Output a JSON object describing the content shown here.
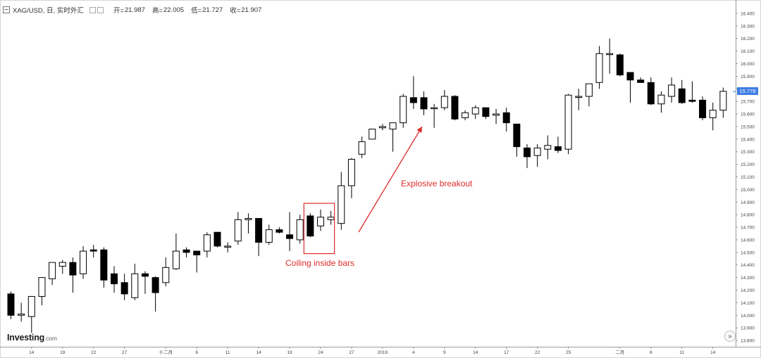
{
  "header": {
    "symbol": "XAG/USD, 日, 实时外汇",
    "open_label": "开=",
    "open_value": "21.987",
    "high_label": "高=",
    "high_value": "22.005",
    "low_label": "低=",
    "low_value": "21.727",
    "close_label": "收=",
    "close_value": "21.907"
  },
  "logo": {
    "brand": "Investing",
    "suffix": ".com"
  },
  "annotations": {
    "breakout": "Explosive breakout",
    "coiling": "Coiling inside bars",
    "color": "#e02b2b"
  },
  "current_price": {
    "label": "15.778",
    "color": "#3d7ee3"
  },
  "scroll_button": {
    "glyph": "»"
  },
  "chart_data": {
    "type": "candlestick",
    "ylim": [
      13.75,
      16.45
    ],
    "yticks": [
      "13.800",
      "13.900",
      "14.000",
      "14.100",
      "14.200",
      "14.300",
      "14.400",
      "14.500",
      "14.600",
      "14.700",
      "14.800",
      "14.900",
      "15.000",
      "15.100",
      "15.200",
      "15.300",
      "15.400",
      "15.500",
      "15.600",
      "15.700",
      "15.800",
      "15.900",
      "16.000",
      "16.100",
      "16.200",
      "16.300",
      "16.400"
    ],
    "xticks": [
      {
        "label": "14",
        "index": 2
      },
      {
        "label": "19",
        "index": 5
      },
      {
        "label": "22",
        "index": 8
      },
      {
        "label": "27",
        "index": 11
      },
      {
        "label": "十二月",
        "index": 15
      },
      {
        "label": "6",
        "index": 18
      },
      {
        "label": "11",
        "index": 21
      },
      {
        "label": "14",
        "index": 24
      },
      {
        "label": "19",
        "index": 27
      },
      {
        "label": "24",
        "index": 30
      },
      {
        "label": "27",
        "index": 33
      },
      {
        "label": "2019",
        "index": 36
      },
      {
        "label": "4",
        "index": 39
      },
      {
        "label": "9",
        "index": 42
      },
      {
        "label": "14",
        "index": 45
      },
      {
        "label": "17",
        "index": 48
      },
      {
        "label": "22",
        "index": 51
      },
      {
        "label": "25",
        "index": 54
      },
      {
        "label": "二月",
        "index": 59
      },
      {
        "label": "6",
        "index": 62
      },
      {
        "label": "11",
        "index": 65
      },
      {
        "label": "14",
        "index": 68
      }
    ],
    "candles": [
      {
        "o": 14.17,
        "h": 14.19,
        "l": 13.97,
        "c": 14.0
      },
      {
        "o": 14.0,
        "h": 14.1,
        "l": 13.95,
        "c": 14.01
      },
      {
        "o": 13.99,
        "h": 14.15,
        "l": 13.86,
        "c": 14.15
      },
      {
        "o": 14.15,
        "h": 14.3,
        "l": 14.08,
        "c": 14.3
      },
      {
        "o": 14.29,
        "h": 14.42,
        "l": 14.24,
        "c": 14.42
      },
      {
        "o": 14.39,
        "h": 14.44,
        "l": 14.33,
        "c": 14.42
      },
      {
        "o": 14.42,
        "h": 14.46,
        "l": 14.18,
        "c": 14.32
      },
      {
        "o": 14.33,
        "h": 14.55,
        "l": 14.29,
        "c": 14.51
      },
      {
        "o": 14.52,
        "h": 14.56,
        "l": 14.46,
        "c": 14.51
      },
      {
        "o": 14.52,
        "h": 14.54,
        "l": 14.22,
        "c": 14.28
      },
      {
        "o": 14.33,
        "h": 14.39,
        "l": 14.18,
        "c": 14.25
      },
      {
        "o": 14.26,
        "h": 14.33,
        "l": 14.12,
        "c": 14.17
      },
      {
        "o": 14.14,
        "h": 14.41,
        "l": 14.12,
        "c": 14.33
      },
      {
        "o": 14.33,
        "h": 14.35,
        "l": 14.17,
        "c": 14.31
      },
      {
        "o": 14.3,
        "h": 14.31,
        "l": 14.03,
        "c": 14.18
      },
      {
        "o": 14.26,
        "h": 14.46,
        "l": 14.23,
        "c": 14.38
      },
      {
        "o": 14.37,
        "h": 14.65,
        "l": 14.36,
        "c": 14.51
      },
      {
        "o": 14.52,
        "h": 14.54,
        "l": 14.46,
        "c": 14.5
      },
      {
        "o": 14.51,
        "h": 14.51,
        "l": 14.34,
        "c": 14.48
      },
      {
        "o": 14.51,
        "h": 14.66,
        "l": 14.46,
        "c": 14.64
      },
      {
        "o": 14.66,
        "h": 14.66,
        "l": 14.54,
        "c": 14.55
      },
      {
        "o": 14.55,
        "h": 14.58,
        "l": 14.5,
        "c": 14.55
      },
      {
        "o": 14.59,
        "h": 14.82,
        "l": 14.56,
        "c": 14.76
      },
      {
        "o": 14.76,
        "h": 14.81,
        "l": 14.65,
        "c": 14.77
      },
      {
        "o": 14.77,
        "h": 14.77,
        "l": 14.47,
        "c": 14.58
      },
      {
        "o": 14.58,
        "h": 14.72,
        "l": 14.56,
        "c": 14.68
      },
      {
        "o": 14.68,
        "h": 14.7,
        "l": 14.65,
        "c": 14.66
      },
      {
        "o": 14.64,
        "h": 14.82,
        "l": 14.51,
        "c": 14.61
      },
      {
        "o": 14.6,
        "h": 14.8,
        "l": 14.57,
        "c": 14.76
      },
      {
        "o": 14.79,
        "h": 14.81,
        "l": 14.62,
        "c": 14.63
      },
      {
        "o": 14.71,
        "h": 14.84,
        "l": 14.67,
        "c": 14.78
      },
      {
        "o": 14.76,
        "h": 14.83,
        "l": 14.72,
        "c": 14.78
      },
      {
        "o": 14.73,
        "h": 15.14,
        "l": 14.68,
        "c": 15.03
      },
      {
        "o": 15.03,
        "h": 15.25,
        "l": 14.93,
        "c": 15.24
      },
      {
        "o": 15.28,
        "h": 15.42,
        "l": 15.25,
        "c": 15.38
      },
      {
        "o": 15.4,
        "h": 15.48,
        "l": 15.4,
        "c": 15.48
      },
      {
        "o": 15.49,
        "h": 15.52,
        "l": 15.47,
        "c": 15.5
      },
      {
        "o": 15.48,
        "h": 15.53,
        "l": 15.3,
        "c": 15.53
      },
      {
        "o": 15.53,
        "h": 15.76,
        "l": 15.49,
        "c": 15.74
      },
      {
        "o": 15.73,
        "h": 15.9,
        "l": 15.64,
        "c": 15.69
      },
      {
        "o": 15.73,
        "h": 15.78,
        "l": 15.59,
        "c": 15.64
      },
      {
        "o": 15.65,
        "h": 15.68,
        "l": 15.49,
        "c": 15.65
      },
      {
        "o": 15.65,
        "h": 15.79,
        "l": 15.63,
        "c": 15.74
      },
      {
        "o": 15.74,
        "h": 15.75,
        "l": 15.55,
        "c": 15.56
      },
      {
        "o": 15.57,
        "h": 15.63,
        "l": 15.55,
        "c": 15.61
      },
      {
        "o": 15.6,
        "h": 15.67,
        "l": 15.56,
        "c": 15.65
      },
      {
        "o": 15.65,
        "h": 15.65,
        "l": 15.56,
        "c": 15.58
      },
      {
        "o": 15.59,
        "h": 15.64,
        "l": 15.52,
        "c": 15.6
      },
      {
        "o": 15.61,
        "h": 15.65,
        "l": 15.46,
        "c": 15.53
      },
      {
        "o": 15.52,
        "h": 15.52,
        "l": 15.26,
        "c": 15.34
      },
      {
        "o": 15.33,
        "h": 15.36,
        "l": 15.17,
        "c": 15.26
      },
      {
        "o": 15.27,
        "h": 15.36,
        "l": 15.18,
        "c": 15.33
      },
      {
        "o": 15.32,
        "h": 15.43,
        "l": 15.24,
        "c": 15.35
      },
      {
        "o": 15.34,
        "h": 15.42,
        "l": 15.29,
        "c": 15.31
      },
      {
        "o": 15.32,
        "h": 15.76,
        "l": 15.28,
        "c": 15.75
      },
      {
        "o": 15.74,
        "h": 15.8,
        "l": 15.63,
        "c": 15.74
      },
      {
        "o": 15.74,
        "h": 15.84,
        "l": 15.66,
        "c": 15.84
      },
      {
        "o": 15.85,
        "h": 16.14,
        "l": 15.8,
        "c": 16.08
      },
      {
        "o": 16.08,
        "h": 16.2,
        "l": 15.92,
        "c": 16.08
      },
      {
        "o": 16.07,
        "h": 16.08,
        "l": 15.9,
        "c": 15.91
      },
      {
        "o": 15.93,
        "h": 15.93,
        "l": 15.69,
        "c": 15.87
      },
      {
        "o": 15.87,
        "h": 15.89,
        "l": 15.85,
        "c": 15.85
      },
      {
        "o": 15.85,
        "h": 15.89,
        "l": 15.67,
        "c": 15.68
      },
      {
        "o": 15.68,
        "h": 15.78,
        "l": 15.61,
        "c": 15.75
      },
      {
        "o": 15.74,
        "h": 15.89,
        "l": 15.69,
        "c": 15.83
      },
      {
        "o": 15.8,
        "h": 15.87,
        "l": 15.68,
        "c": 15.69
      },
      {
        "o": 15.71,
        "h": 15.86,
        "l": 15.69,
        "c": 15.7
      },
      {
        "o": 15.71,
        "h": 15.74,
        "l": 15.55,
        "c": 15.57
      },
      {
        "o": 15.57,
        "h": 15.69,
        "l": 15.47,
        "c": 15.63
      },
      {
        "o": 15.63,
        "h": 15.81,
        "l": 15.57,
        "c": 15.78
      }
    ]
  }
}
